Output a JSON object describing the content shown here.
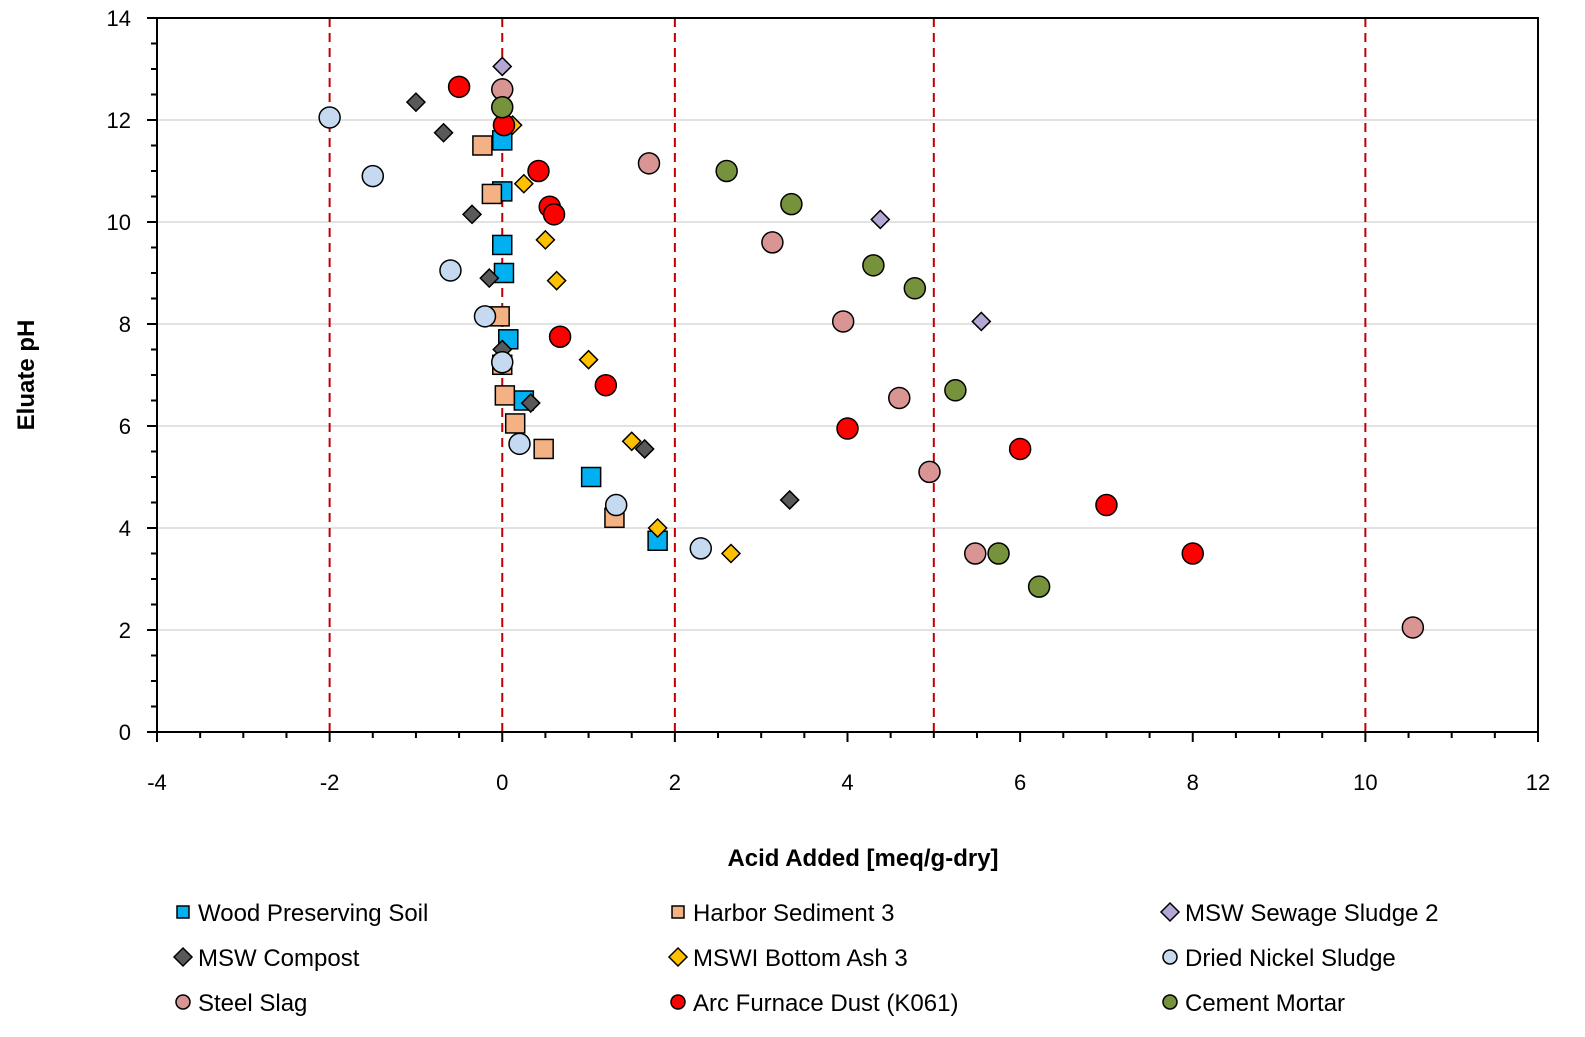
{
  "chart_data": {
    "type": "scatter",
    "title": "",
    "xlabel": "Acid Added [meq/g-dry]",
    "ylabel": "Eluate pH",
    "xlim": [
      -4,
      12
    ],
    "ylim": [
      0,
      14
    ],
    "x_ticks": [
      -4,
      -2,
      0,
      2,
      4,
      6,
      8,
      10,
      12
    ],
    "y_ticks": [
      0,
      2,
      4,
      6,
      8,
      10,
      12,
      14
    ],
    "grid": "horizontal",
    "reference_lines": {
      "x": [
        -2,
        0,
        2,
        5,
        10
      ],
      "color": "#c00000",
      "style": "dashed"
    },
    "legend_position": "bottom",
    "series": [
      {
        "name": "Wood Preserving Soil",
        "marker": "square",
        "size": "large",
        "color": "#00b0f0",
        "points": [
          [
            0,
            11.6
          ],
          [
            0,
            10.6
          ],
          [
            0,
            9.55
          ],
          [
            0.02,
            9.0
          ],
          [
            0.07,
            7.7
          ],
          [
            0.25,
            6.5
          ],
          [
            1.03,
            5.0
          ],
          [
            1.8,
            3.75
          ]
        ]
      },
      {
        "name": "Harbor Sediment 3",
        "marker": "square",
        "size": "large",
        "color": "#f4b183",
        "points": [
          [
            -0.23,
            11.5
          ],
          [
            -0.12,
            10.55
          ],
          [
            -0.03,
            8.15
          ],
          [
            0.0,
            7.2
          ],
          [
            0.03,
            6.6
          ],
          [
            0.15,
            6.05
          ],
          [
            0.48,
            5.55
          ],
          [
            1.3,
            4.2
          ]
        ]
      },
      {
        "name": "MSW Sewage Sludge 2",
        "marker": "diamond",
        "size": "small",
        "color": "#b4a7d6",
        "points": [
          [
            0,
            13.05
          ],
          [
            4.38,
            10.05
          ],
          [
            5.55,
            8.05
          ]
        ]
      },
      {
        "name": "MSW Compost",
        "marker": "diamond",
        "size": "small",
        "color": "#595959",
        "points": [
          [
            -1.0,
            12.35
          ],
          [
            -0.68,
            11.75
          ],
          [
            -0.35,
            10.15
          ],
          [
            -0.15,
            8.9
          ],
          [
            0.0,
            7.5
          ],
          [
            0.33,
            6.45
          ],
          [
            1.65,
            5.55
          ],
          [
            3.33,
            4.55
          ]
        ]
      },
      {
        "name": "MSWI Bottom Ash 3",
        "marker": "diamond",
        "size": "small",
        "color": "#ffc000",
        "points": [
          [
            0.12,
            11.9
          ],
          [
            0.25,
            10.75
          ],
          [
            0.5,
            9.65
          ],
          [
            0.63,
            8.85
          ],
          [
            1.0,
            7.3
          ],
          [
            1.5,
            5.7
          ],
          [
            1.8,
            4.0
          ],
          [
            2.65,
            3.5
          ]
        ]
      },
      {
        "name": "Dried Nickel Sludge",
        "marker": "circle",
        "size": "large",
        "color": "#c5d9f1",
        "points": [
          [
            -2.0,
            12.05
          ],
          [
            -1.5,
            10.9
          ],
          [
            -0.6,
            9.05
          ],
          [
            -0.2,
            8.15
          ],
          [
            0.0,
            7.25
          ],
          [
            0.2,
            5.65
          ],
          [
            1.32,
            4.45
          ],
          [
            2.3,
            3.6
          ]
        ]
      },
      {
        "name": "Steel Slag",
        "marker": "circle",
        "size": "large",
        "color": "#d99594",
        "points": [
          [
            0,
            12.6
          ],
          [
            1.7,
            11.15
          ],
          [
            3.13,
            9.6
          ],
          [
            3.95,
            8.05
          ],
          [
            4.6,
            6.55
          ],
          [
            4.95,
            5.1
          ],
          [
            5.48,
            3.5
          ],
          [
            10.55,
            2.05
          ]
        ]
      },
      {
        "name": "Arc Furnace Dust (K061)",
        "marker": "circle",
        "size": "large",
        "color": "#ff0000",
        "points": [
          [
            -0.5,
            12.65
          ],
          [
            0.02,
            11.9
          ],
          [
            0.42,
            11.0
          ],
          [
            0.55,
            10.3
          ],
          [
            0.6,
            10.15
          ],
          [
            0.67,
            7.75
          ],
          [
            1.2,
            6.8
          ],
          [
            4.0,
            5.95
          ],
          [
            6.0,
            5.55
          ],
          [
            7.0,
            4.45
          ],
          [
            8.0,
            3.5
          ]
        ]
      },
      {
        "name": "Cement Mortar",
        "marker": "circle",
        "size": "large",
        "color": "#76923c",
        "points": [
          [
            0,
            12.25
          ],
          [
            2.6,
            11.0
          ],
          [
            3.35,
            10.35
          ],
          [
            4.3,
            9.15
          ],
          [
            4.78,
            8.7
          ],
          [
            5.25,
            6.7
          ],
          [
            5.75,
            3.5
          ],
          [
            6.22,
            2.85
          ]
        ]
      }
    ]
  }
}
